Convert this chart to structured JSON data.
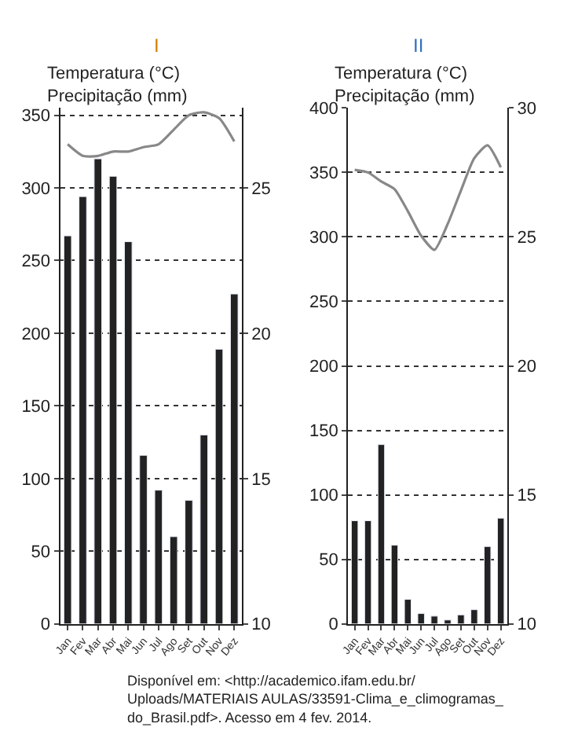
{
  "chart_data": [
    {
      "type": "bar",
      "title": "I",
      "ylabel": "Temperatura (°C)\nPrecipitação (mm)",
      "categories": [
        "Jan",
        "Fev",
        "Mar",
        "Abr",
        "Mai",
        "Jun",
        "Jul",
        "Ago",
        "Set",
        "Out",
        "Nov",
        "Dez"
      ],
      "series": [
        {
          "color": "#222222",
          "values": [
            267,
            294,
            320,
            308,
            263,
            116,
            92,
            60,
            85,
            130,
            189,
            227
          ]
        },
        {
          "type": "line",
          "axis": "y2",
          "color": "#888888",
          "values": [
            26.5,
            26.1,
            26.1,
            26.25,
            26.25,
            26.4,
            26.5,
            27.0,
            27.5,
            27.6,
            27.4,
            26.6
          ]
        }
      ],
      "ylim": [
        0,
        355
      ],
      "yticks": [
        0,
        50,
        100,
        150,
        200,
        250,
        300,
        350
      ],
      "y2lim": [
        10,
        27.75
      ],
      "y2ticks": [
        10,
        15,
        20,
        25
      ],
      "grid": "y",
      "marker": "none",
      "line_style": "solid",
      "legend": false
    },
    {
      "type": "bar",
      "title": "II",
      "ylabel": "Temperatura (°C)\nPrecipitação (mm)",
      "categories": [
        "Jan",
        "Fev",
        "Mar",
        "Abr",
        "Mai",
        "Jun",
        "Jul",
        "Ago",
        "Set",
        "Out",
        "Nov",
        "Dez"
      ],
      "series": [
        {
          "color": "#222222",
          "values": [
            80,
            80,
            139,
            61,
            19,
            8,
            6,
            3,
            7,
            11,
            60,
            82
          ]
        },
        {
          "type": "line",
          "axis": "y2",
          "color": "#888888",
          "values": [
            27.6,
            27.5,
            27.15,
            26.85,
            26.0,
            25.05,
            24.5,
            25.5,
            26.8,
            28.05,
            28.55,
            27.7
          ]
        }
      ],
      "ylim": [
        0,
        400
      ],
      "yticks": [
        0,
        50,
        100,
        150,
        200,
        250,
        300,
        350,
        400
      ],
      "y2lim": [
        10,
        30
      ],
      "y2ticks": [
        10,
        15,
        20,
        25,
        30
      ],
      "grid": "y",
      "marker": "none",
      "line_style": "solid",
      "legend": false,
      "annotations": [
        "Disponível em: <http://academico.ifam.edu.br/Uploads/MATERIAIS AULAS/33591-Clima_e_climogramas_do_Brasil.pdf>. Acesso em 4 fev. 2014."
      ]
    }
  ]
}
